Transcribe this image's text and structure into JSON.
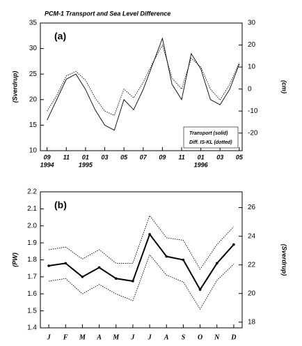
{
  "chart_data": [
    {
      "type": "line",
      "title": "PCM-1 Transport and Sea Level Difference",
      "panel_label": "(a)",
      "y_label": "(Sverdrup)",
      "y2_label": "(cm)",
      "x": [
        "1994-09",
        "1994-10",
        "1994-11",
        "1994-12",
        "1995-01",
        "1995-02",
        "1995-03",
        "1995-04",
        "1995-05",
        "1995-06",
        "1995-07",
        "1995-08",
        "1995-09",
        "1995-10",
        "1995-11",
        "1995-12",
        "1996-01",
        "1996-02",
        "1996-03",
        "1996-04",
        "1996-05"
      ],
      "xticks": [
        {
          "value": "1994-09",
          "label": "09"
        },
        {
          "value": "1994-11",
          "label": "11"
        },
        {
          "value": "1995-01",
          "label": "01"
        },
        {
          "value": "1995-03",
          "label": "03"
        },
        {
          "value": "1995-05",
          "label": "05"
        },
        {
          "value": "1995-07",
          "label": "07"
        },
        {
          "value": "1995-09",
          "label": "09"
        },
        {
          "value": "1995-11",
          "label": "11"
        },
        {
          "value": "1996-01",
          "label": "01"
        },
        {
          "value": "1996-03",
          "label": "03"
        },
        {
          "value": "1996-05",
          "label": "05"
        }
      ],
      "year_labels": [
        {
          "value": "1994-09",
          "label": "1994"
        },
        {
          "value": "1995-01",
          "label": "1995"
        },
        {
          "value": "1996-01",
          "label": "1996"
        }
      ],
      "ylim": [
        10,
        35
      ],
      "yticks": [
        10,
        15,
        20,
        25,
        30,
        35
      ],
      "y2lim": [
        -28,
        30
      ],
      "y2ticks": [
        -20,
        -10,
        0,
        10,
        20,
        30
      ],
      "legend": "bottom-right",
      "series": [
        {
          "name": "Transport (solid)",
          "color": "#000000",
          "style": "solid",
          "values": [
            16,
            20,
            24,
            25,
            22,
            18,
            15,
            14,
            20,
            18,
            22,
            27,
            32,
            23,
            20,
            29,
            26,
            20,
            19,
            22,
            27
          ]
        },
        {
          "name": "Diff. IS-KL (dotted)",
          "color": "#000000",
          "style": "dotted",
          "axis": "y2",
          "values": [
            -10,
            -3,
            6,
            8,
            4,
            -4,
            -10,
            -12,
            0,
            -4,
            3,
            12,
            20,
            5,
            0,
            14,
            10,
            0,
            -5,
            2,
            12
          ]
        }
      ]
    },
    {
      "type": "line",
      "panel_label": "(b)",
      "y_label": "(PW)",
      "y2_label": "(Sverdrup)",
      "categories": [
        "J",
        "F",
        "M",
        "A",
        "M",
        "J",
        "J",
        "A",
        "S",
        "O",
        "N",
        "D"
      ],
      "ylim": [
        1.4,
        2.2
      ],
      "yticks": [
        1.4,
        1.5,
        1.6,
        1.7,
        1.8,
        1.9,
        {
          "value": 2,
          "label": "2.0"
        },
        2.1,
        2.2
      ],
      "y2lim": [
        17.6,
        27.1
      ],
      "y2ticks": [
        18,
        20,
        22,
        24,
        26
      ],
      "series": [
        {
          "color": "#000000",
          "style": "dotted",
          "values": [
            1.86,
            1.875,
            1.805,
            1.86,
            1.78,
            1.78,
            2.06,
            1.93,
            1.915,
            1.745,
            1.89,
            1.995
          ]
        },
        {
          "color": "#000000",
          "style": "thick",
          "marker": true,
          "values": [
            1.765,
            1.78,
            1.7,
            1.755,
            1.69,
            1.675,
            1.95,
            1.82,
            1.8,
            1.625,
            1.78,
            1.89
          ]
        },
        {
          "color": "#000000",
          "style": "dotted",
          "values": [
            1.675,
            1.69,
            1.6,
            1.655,
            1.6,
            1.56,
            1.83,
            1.71,
            1.67,
            1.51,
            1.68,
            1.775
          ]
        }
      ]
    }
  ]
}
